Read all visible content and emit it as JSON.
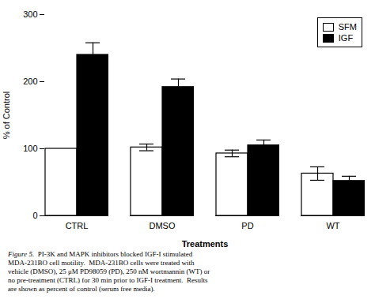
{
  "chart_data": {
    "type": "bar",
    "categories": [
      "CTRL",
      "DMSO",
      "PD",
      "WT"
    ],
    "series": [
      {
        "name": "SFM",
        "color": "#ffffff",
        "values": [
          100,
          102,
          93,
          63
        ],
        "errors": [
          0,
          5,
          5,
          10
        ]
      },
      {
        "name": "IGF",
        "color": "#000000",
        "values": [
          240,
          192,
          105,
          52
        ],
        "errors": [
          18,
          12,
          8,
          7
        ]
      }
    ],
    "xlabel": "Treatments",
    "ylabel": "% of Control",
    "ylim": [
      0,
      300
    ],
    "yticks": [
      0,
      100,
      200,
      300
    ],
    "legend": "upper right",
    "caption_label": "Figure 5.",
    "caption": "  PI-3K and MAPK inhibitors blocked IGF-I stimulated\nMDA-231BO cell motility.  MDA-231BO cells were treated with\nvehicle (DMSO), 25 μM PD98059 (PD), 250 nM wortmannin (WT) or\nno pre-treatment (CTRL) for 30 min prior to IGF-I treatment.  Results\nare shown as percent of control (serum free media)."
  }
}
